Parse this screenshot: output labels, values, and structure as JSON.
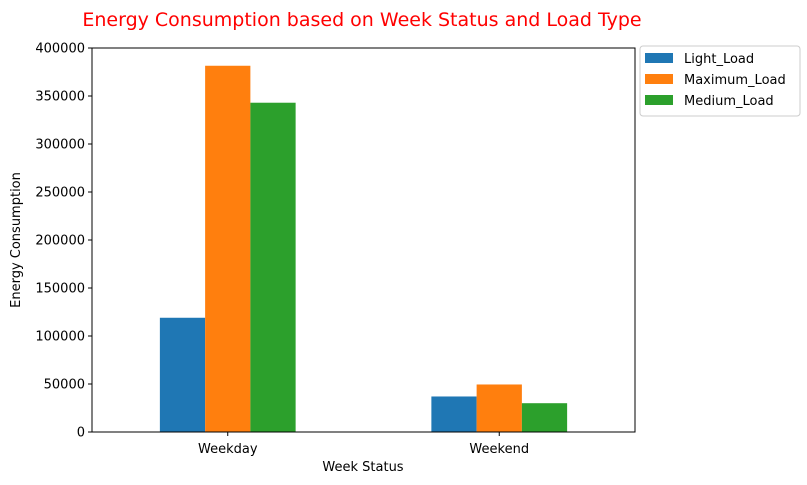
{
  "chart_data": {
    "type": "bar",
    "title": "Energy Consumption based on Week Status and Load Type",
    "title_color": "#ff0000",
    "xlabel": "Week Status",
    "ylabel": "Energy Consumption",
    "categories": [
      "Weekday",
      "Weekend"
    ],
    "series": [
      {
        "name": "Light_Load",
        "color": "#1f77b4",
        "values": [
          119000,
          37000
        ]
      },
      {
        "name": "Maximum_Load",
        "color": "#ff7f0e",
        "values": [
          381500,
          49500
        ]
      },
      {
        "name": "Medium_Load",
        "color": "#2ca02c",
        "values": [
          343000,
          30000
        ]
      }
    ],
    "ylim": [
      0,
      400000
    ],
    "yticks": [
      0,
      50000,
      100000,
      150000,
      200000,
      250000,
      300000,
      350000,
      400000
    ],
    "ytick_labels": [
      "0",
      "50000",
      "100000",
      "150000",
      "200000",
      "250000",
      "300000",
      "350000",
      "400000"
    ],
    "grid": false,
    "legend_position": "outside-top-right"
  }
}
